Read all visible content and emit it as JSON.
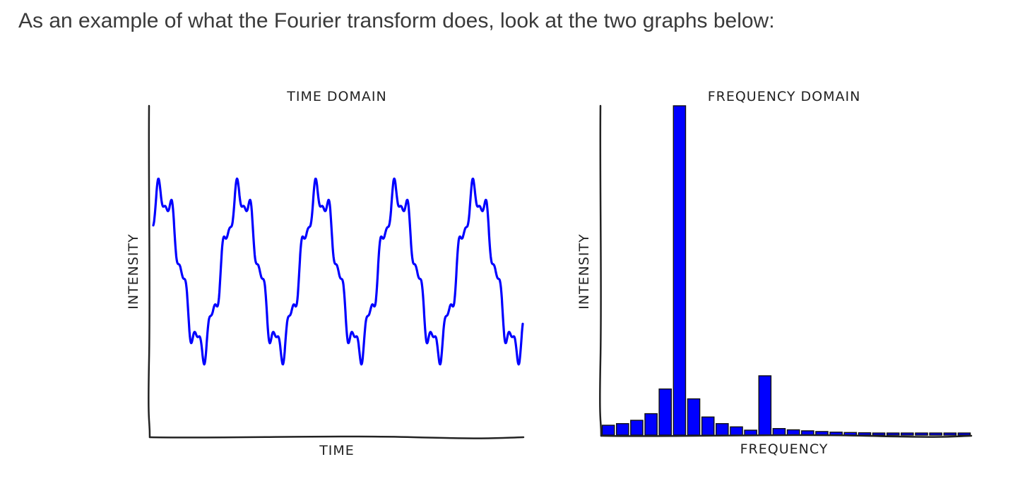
{
  "intro_text": "As an example of what the Fourier transform does, look at the two graphs below:",
  "colors": {
    "signal": "#0000ff",
    "axes": "#222222",
    "text": "#3a3a3a"
  },
  "chart_data": [
    {
      "type": "line",
      "title": "TIME DOMAIN",
      "xlabel": "TIME",
      "ylabel": "INTENSITY",
      "style": "xkcd",
      "grid": false,
      "series": [
        {
          "cycles": 4.7,
          "components": [
            {
              "harmonic": 1,
              "amplitude": 1.0
            },
            {
              "harmonic": 6,
              "amplitude": 0.18
            },
            {
              "harmonic": 11,
              "amplitude": 0.08
            }
          ]
        }
      ]
    },
    {
      "type": "bar",
      "title": "FREQUENCY DOMAIN",
      "xlabel": "FREQUENCY",
      "ylabel": "INTENSITY",
      "style": "xkcd",
      "grid": false,
      "ylim": [
        0,
        100
      ],
      "values": [
        3,
        3.5,
        4.5,
        6.5,
        14,
        100,
        11,
        5.5,
        3.5,
        2.5,
        1.5,
        18,
        2,
        1.6,
        1.3,
        1.1,
        0.9,
        0.8,
        0.7,
        0.6,
        0.5,
        0.5,
        0.4,
        0.4,
        0.3,
        0.3
      ]
    }
  ]
}
